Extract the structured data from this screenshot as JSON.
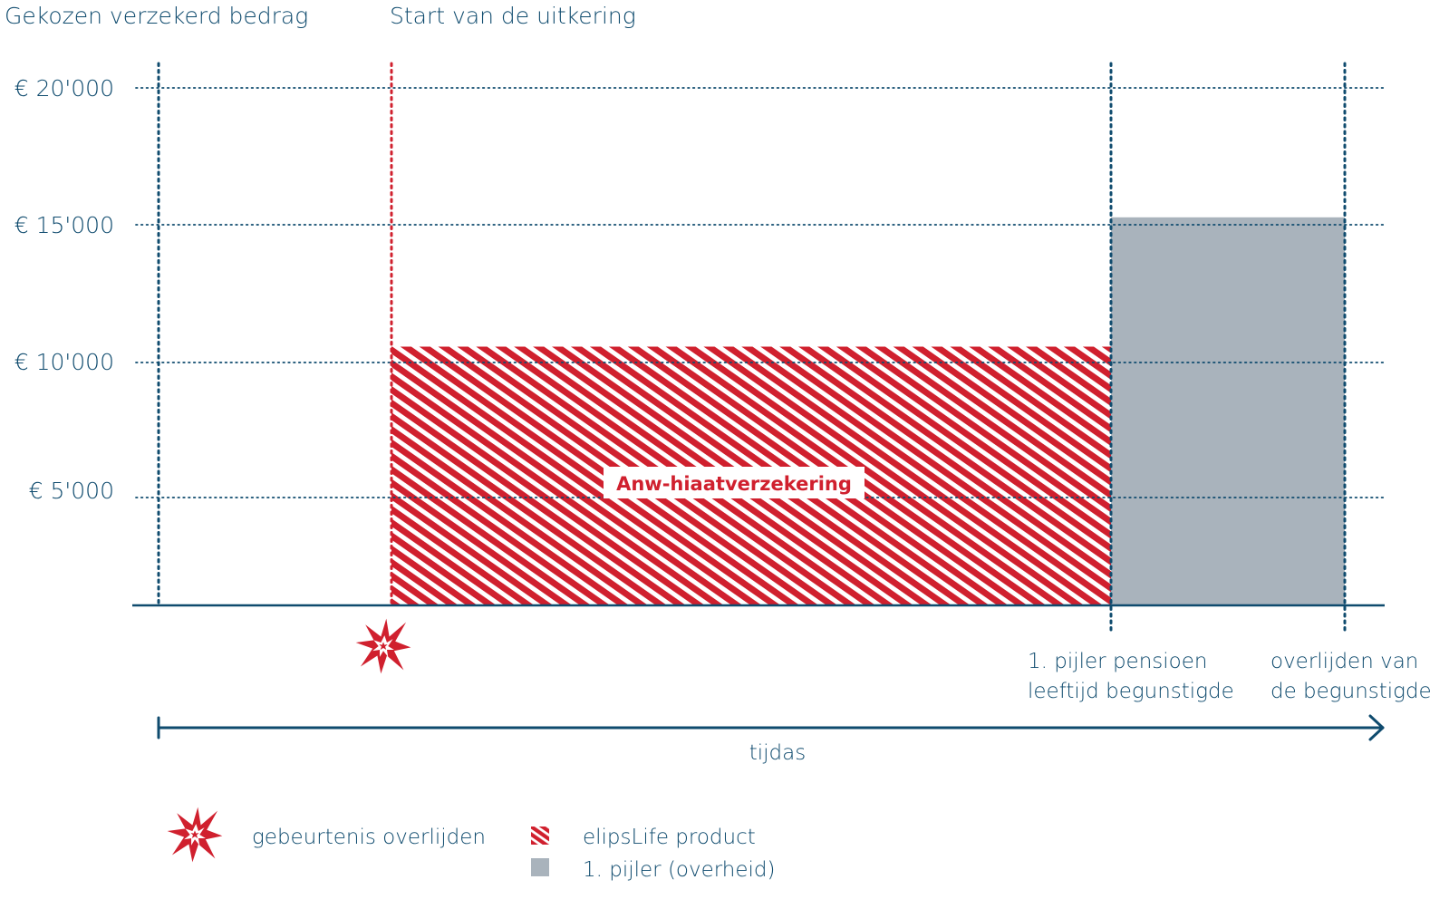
{
  "header": {
    "left_title": "Gekozen verzekerd bedrag",
    "right_title": "Start van de uitkering"
  },
  "y_axis": {
    "ticks": [
      {
        "value": 20000,
        "label": "€ 20'000"
      },
      {
        "value": 15000,
        "label": "€ 15'000"
      },
      {
        "value": 10000,
        "label": "€ 10'000"
      },
      {
        "value": 5000,
        "label": "€ 5'000"
      }
    ]
  },
  "blocks": {
    "product": {
      "label": "Anw-hiaatverzekering",
      "value": 10000,
      "color": "#d0202e"
    },
    "first_pillar": {
      "value": 15000,
      "color": "#a9b3bc"
    }
  },
  "milestones": {
    "pension": {
      "line1": "1. pijler pensioen",
      "line2": "leeftijd begunstigde"
    },
    "death": {
      "line1": "overlijden van",
      "line2": "de begunstigde"
    }
  },
  "time_axis": {
    "label": "tijdas"
  },
  "legend": {
    "event": "gebeurtenis overlijden",
    "product": "elipsLife product",
    "first_pillar": "1. pijler (overheid)"
  },
  "colors": {
    "navy": "#0f4b6e",
    "red": "#d0202e",
    "grey": "#a9b3bc"
  },
  "icons": {
    "event": "starburst-icon"
  }
}
